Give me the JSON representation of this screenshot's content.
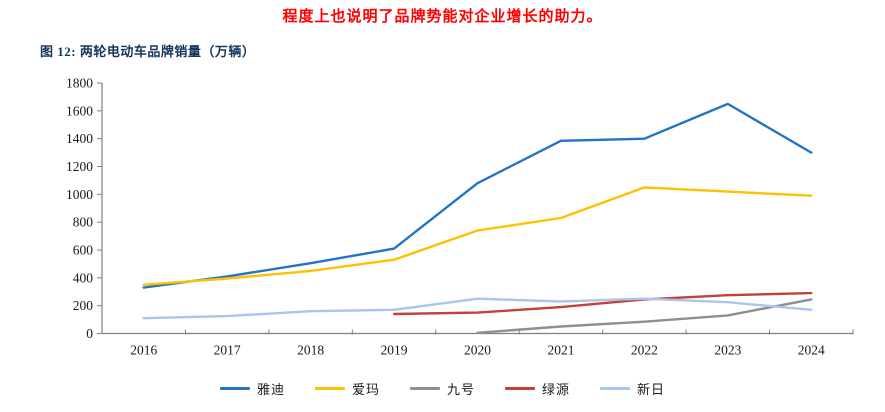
{
  "page": {
    "heading": "程度上也说明了品牌势能对企业增长的助力。",
    "heading_color": "#FF0000",
    "figure_caption": "图 12:  两轮电动车品牌销量（万辆）",
    "caption_color": "#16365C"
  },
  "chart_data": {
    "type": "line",
    "title": "两轮电动车品牌销量（万辆）",
    "categories": [
      "2016",
      "2017",
      "2018",
      "2019",
      "2020",
      "2021",
      "2022",
      "2023",
      "2024"
    ],
    "series": [
      {
        "name": "雅迪",
        "color": "#2374C4",
        "values": [
          330,
          410,
          505,
          610,
          1080,
          1385,
          1400,
          1650,
          1300
        ]
      },
      {
        "name": "爱玛",
        "color": "#FFC000",
        "values": [
          350,
          395,
          450,
          530,
          740,
          830,
          1050,
          1020,
          990
        ]
      },
      {
        "name": "九号",
        "color": "#8F8F8F",
        "values": [
          null,
          null,
          null,
          null,
          5,
          50,
          85,
          130,
          245
        ]
      },
      {
        "name": "绿源",
        "color": "#C4403A",
        "values": [
          null,
          null,
          null,
          140,
          150,
          190,
          245,
          275,
          290
        ]
      },
      {
        "name": "新日",
        "color": "#A9C6EC",
        "values": [
          110,
          125,
          160,
          170,
          250,
          230,
          250,
          225,
          170
        ]
      }
    ],
    "ylim": [
      0,
      1800
    ],
    "ytick_step": 200,
    "xlabel": "",
    "ylabel": "",
    "grid": false,
    "legend_position": "bottom",
    "axis_color": "#808080"
  }
}
